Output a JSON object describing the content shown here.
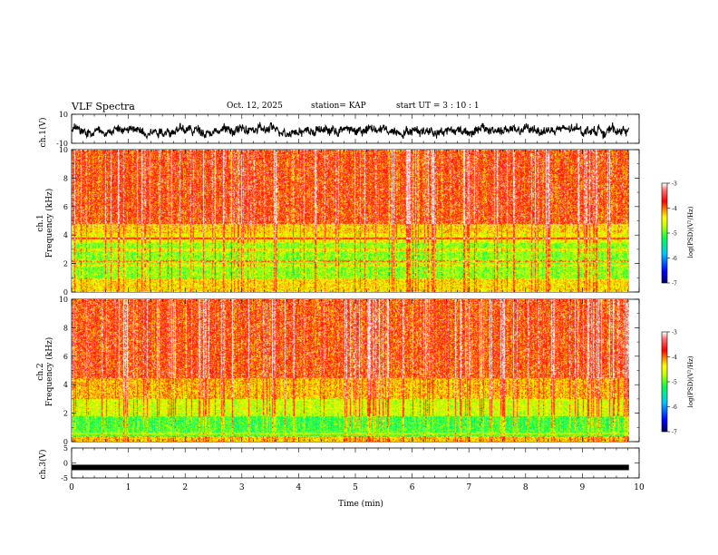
{
  "header": {
    "title": "VLF Spectra",
    "date": "Oct. 12, 2025",
    "station": "station= KAP",
    "start": "start  UT =  3 : 10 : 1"
  },
  "chart_data": [
    {
      "type": "line",
      "name": "ch1-waveform",
      "ylabel": "ch.1(V)",
      "ylim": [
        -10,
        10
      ],
      "yticks": [
        "10",
        "-10"
      ],
      "xlim": [
        0,
        10
      ],
      "description": "noisy waveform around 0 V with large fluctuations"
    },
    {
      "type": "heatmap",
      "name": "ch1-spectrogram",
      "ylabel": "ch.1\nFrequency (kHz)",
      "ylabel_line1": "ch.1",
      "ylabel_line2": "Frequency (kHz)",
      "ylim": [
        0,
        10
      ],
      "yticks": [
        "0",
        "2",
        "4",
        "6",
        "8",
        "10"
      ],
      "xlim": [
        0,
        9.82
      ],
      "colorbar": {
        "label": "log(PSD)(V²/Hz)",
        "ticks": [
          "-3",
          "-4",
          "-5",
          "-6",
          "-7"
        ],
        "range": [
          -7,
          -3
        ]
      },
      "bands_khz": [
        {
          "f": 3.8,
          "level": "high"
        },
        {
          "f": 3.0,
          "level": "mid"
        },
        {
          "f": 2.2,
          "level": "high"
        },
        {
          "f": 1.9,
          "level": "mid"
        }
      ]
    },
    {
      "type": "heatmap",
      "name": "ch2-spectrogram",
      "ylabel_line1": "ch.2",
      "ylabel_line2": "Frequency (kHz)",
      "ylim": [
        0,
        10
      ],
      "yticks": [
        "0",
        "2",
        "4",
        "6",
        "8",
        "10"
      ],
      "xlim": [
        0,
        9.82
      ],
      "colorbar": {
        "label": "log(PSD)(V²/Hz)",
        "ticks": [
          "-3",
          "-4",
          "-5",
          "-6",
          "-7"
        ],
        "range": [
          -7,
          -3
        ]
      },
      "bands_khz": [
        {
          "f": 1.9,
          "level": "mid"
        },
        {
          "f": 0.6,
          "level": "mid"
        }
      ]
    },
    {
      "type": "line",
      "name": "ch3-waveform",
      "ylabel": "ch.3(V)",
      "ylim": [
        -5,
        5
      ],
      "yticks": [
        "5",
        "0",
        "-5"
      ],
      "value": -1.5,
      "xlim": [
        0,
        9.82
      ]
    }
  ],
  "xaxis": {
    "label": "Time (min)",
    "ticks": [
      "0",
      "1",
      "2",
      "3",
      "4",
      "5",
      "6",
      "7",
      "8",
      "9",
      "10"
    ],
    "range": [
      0,
      10
    ]
  },
  "colors": {
    "colormap": [
      "#000080",
      "#0000ff",
      "#00c0ff",
      "#00ff60",
      "#c8ff00",
      "#ffff00",
      "#ff8000",
      "#ff0000",
      "#ffffff"
    ]
  }
}
